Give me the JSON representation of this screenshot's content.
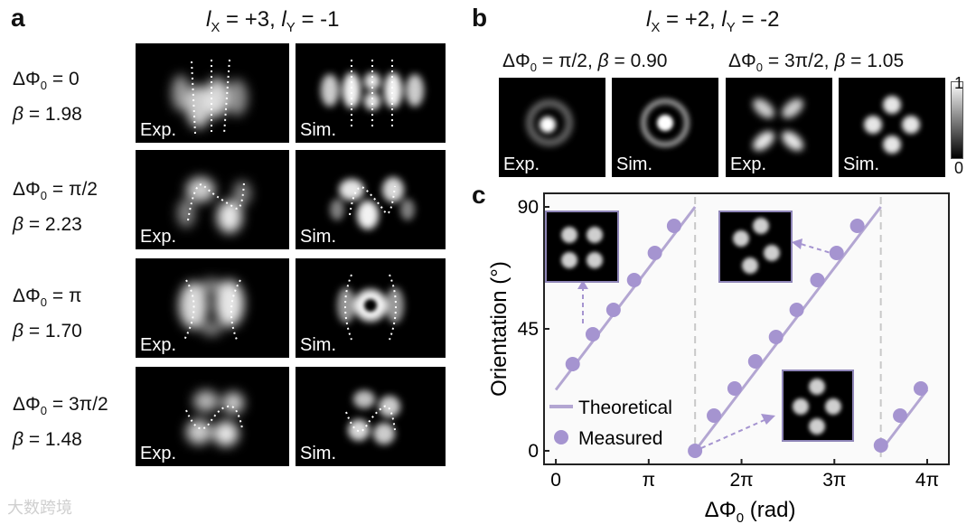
{
  "panels": {
    "a": "a",
    "b": "b",
    "c": "c"
  },
  "panel_a": {
    "title_l": "l",
    "title_x": "X",
    "title_xval": " = +3, ",
    "title_y": "Y",
    "title_yval": " = -1",
    "rows": [
      {
        "phase_prefix": "ΔΦ",
        "phase_sub": "0",
        "phase_val": " = 0",
        "beta_sym": "β",
        "beta_val": " = 1.98"
      },
      {
        "phase_prefix": "ΔΦ",
        "phase_sub": "0",
        "phase_val": " = π/2",
        "beta_sym": "β",
        "beta_val": " = 2.23"
      },
      {
        "phase_prefix": "ΔΦ",
        "phase_sub": "0",
        "phase_val": " = π",
        "beta_sym": "β",
        "beta_val": " = 1.70"
      },
      {
        "phase_prefix": "ΔΦ",
        "phase_sub": "0",
        "phase_val": " = 3π/2",
        "beta_sym": "β",
        "beta_val": " = 1.48"
      }
    ],
    "exp_tag": "Exp.",
    "sim_tag": "Sim."
  },
  "panel_b": {
    "title_l": "l",
    "title_x": "X",
    "title_xval": " = +2, ",
    "title_y": "Y",
    "title_yval": " = -2",
    "left_caption": {
      "phase_prefix": "ΔΦ",
      "phase_sub": "0",
      "phase_val": " = π/2, ",
      "beta_sym": "β",
      "beta_val": " = 0.90"
    },
    "right_caption": {
      "phase_prefix": "ΔΦ",
      "phase_sub": "0",
      "phase_val": " = 3π/2, ",
      "beta_sym": "β",
      "beta_val": " = 1.05"
    },
    "exp_tag": "Exp.",
    "sim_tag": "Sim.",
    "colorbar": {
      "max_label": "1",
      "min_label": "0"
    }
  },
  "chart_data": {
    "type": "scatter",
    "xlabel": "ΔΦ0 (rad)",
    "xlabel_prefix": "ΔΦ",
    "xlabel_sub": "0",
    "xlabel_suffix": " (rad)",
    "ylabel": "Orientation (°)",
    "xlim": [
      0,
      12.566
    ],
    "ylim": [
      0,
      90
    ],
    "x_ticks": [
      {
        "value": 0,
        "label": "0"
      },
      {
        "value": 3.1416,
        "label": "π"
      },
      {
        "value": 6.2832,
        "label": "2π"
      },
      {
        "value": 9.4248,
        "label": "3π"
      },
      {
        "value": 12.5664,
        "label": "4π"
      }
    ],
    "y_ticks": [
      {
        "value": 0,
        "label": "0"
      },
      {
        "value": 45,
        "label": "45"
      },
      {
        "value": 90,
        "label": "90"
      }
    ],
    "series": [
      {
        "name": "Theoretical",
        "kind": "line",
        "color": "#b3a6d2",
        "segments": [
          {
            "x": [
              0,
              4.712
            ],
            "y": [
              22.5,
              90
            ]
          },
          {
            "x": [
              4.712,
              10.996
            ],
            "y": [
              0,
              90
            ]
          },
          {
            "x": [
              10.996,
              12.566
            ],
            "y": [
              0,
              22.5
            ]
          }
        ]
      },
      {
        "name": "Measured",
        "kind": "marker",
        "color": "#a594d0",
        "x": [
          0.57,
          1.25,
          1.95,
          2.65,
          3.35,
          4.0,
          4.71,
          5.35,
          6.05,
          6.75,
          7.45,
          8.15,
          8.85,
          9.5,
          10.2,
          11.0,
          11.65,
          12.35
        ],
        "y": [
          32,
          43,
          52,
          63,
          73,
          83,
          0,
          13,
          23,
          33,
          42,
          52,
          63,
          73,
          83,
          2,
          13,
          23
        ]
      }
    ],
    "dashed_separators_x": [
      4.712,
      10.996
    ],
    "legend": {
      "placement": "bottom-left",
      "entries": [
        "Theoretical",
        "Measured"
      ]
    },
    "insets": [
      {
        "name": "inset-top-left",
        "pattern": "four-lobe"
      },
      {
        "name": "inset-top-middle",
        "pattern": "four-lobe"
      },
      {
        "name": "inset-bottom",
        "pattern": "four-lobe"
      }
    ]
  },
  "colors": {
    "accent_purple": "#a594d0",
    "line_purple": "#b3a6d2",
    "dashed_gray": "#c8c8c8",
    "inset_border": "#8f86b8"
  },
  "watermark": "大数跨境"
}
